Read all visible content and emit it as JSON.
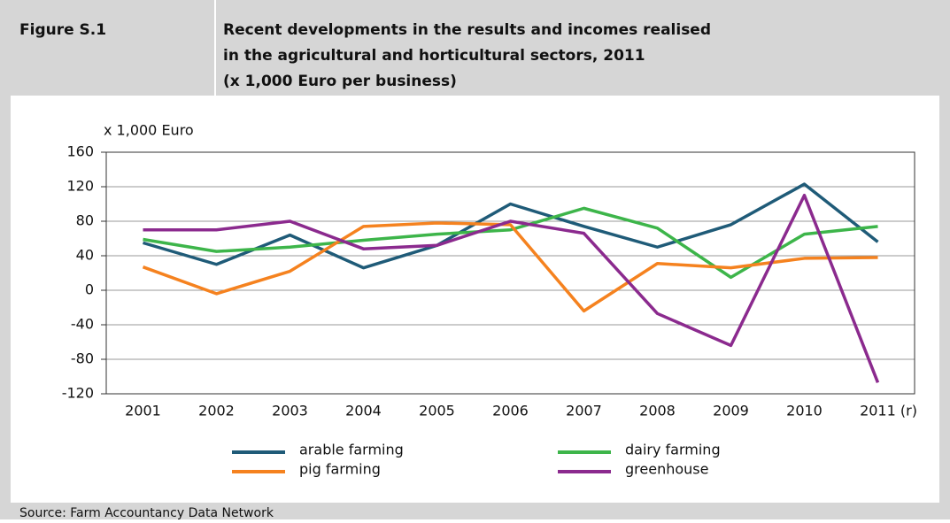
{
  "header": {
    "figure": "Figure S.1",
    "title_lines": [
      "Recent developments in the results and incomes realised",
      "in the agricultural and horticultural sectors, 2011",
      "(x 1,000 Euro per business)"
    ]
  },
  "chart_data": {
    "type": "line",
    "y_label": "x 1,000 Euro",
    "categories": [
      "2001",
      "2002",
      "2003",
      "2004",
      "2005",
      "2006",
      "2007",
      "2008",
      "2009",
      "2010",
      "2011 (r)"
    ],
    "series": [
      {
        "name": "arable farming",
        "color": "#1f5b78",
        "values": [
          55,
          30,
          64,
          26,
          52,
          100,
          74,
          50,
          76,
          123,
          56
        ]
      },
      {
        "name": "dairy farming",
        "color": "#3db54a",
        "values": [
          59,
          45,
          50,
          58,
          65,
          70,
          95,
          72,
          15,
          65,
          74
        ]
      },
      {
        "name": "pig farming",
        "color": "#f5821f",
        "values": [
          27,
          -4,
          22,
          74,
          78,
          76,
          -24,
          31,
          26,
          37,
          38
        ]
      },
      {
        "name": "greenhouse",
        "color": "#8b2a8e",
        "values": [
          70,
          70,
          80,
          48,
          52,
          80,
          66,
          -27,
          -64,
          110,
          -107
        ]
      }
    ],
    "ylim": [
      -120,
      160
    ],
    "yticks": [
      -120,
      -80,
      -40,
      0,
      40,
      80,
      120,
      160
    ],
    "grid": true
  },
  "footer": {
    "source": "Source: Farm Accountancy Data Network"
  }
}
